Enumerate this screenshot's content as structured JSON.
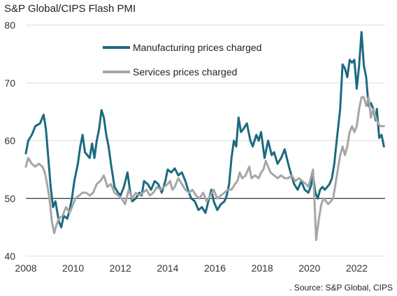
{
  "chart_data": {
    "type": "line",
    "title": "S&P Global/CIPS Flash PMI",
    "source": ". Source: S&P Global, CIPS",
    "xlim": [
      2008.0,
      2023.2
    ],
    "ylim": [
      40,
      80
    ],
    "x_ticks": [
      2008,
      2010,
      2012,
      2014,
      2016,
      2018,
      2020,
      2022
    ],
    "y_ticks": [
      40,
      50,
      60,
      70,
      80
    ],
    "reference_line": 50,
    "grid": "horizontal",
    "legend_position": "top-center",
    "series": [
      {
        "name": "Manufacturing prices charged",
        "color": "#1b6a80",
        "points": [
          [
            2008.0,
            57.8
          ],
          [
            2008.1,
            60.0
          ],
          [
            2008.25,
            61.0
          ],
          [
            2008.4,
            62.5
          ],
          [
            2008.6,
            63.0
          ],
          [
            2008.75,
            64.5
          ],
          [
            2008.85,
            62.0
          ],
          [
            2008.95,
            57.0
          ],
          [
            2009.05,
            52.0
          ],
          [
            2009.15,
            48.5
          ],
          [
            2009.25,
            49.5
          ],
          [
            2009.4,
            46.0
          ],
          [
            2009.5,
            45.0
          ],
          [
            2009.6,
            47.0
          ],
          [
            2009.75,
            46.5
          ],
          [
            2009.85,
            48.0
          ],
          [
            2009.95,
            50.0
          ],
          [
            2010.05,
            53.0
          ],
          [
            2010.2,
            56.0
          ],
          [
            2010.3,
            59.0
          ],
          [
            2010.4,
            61.0
          ],
          [
            2010.5,
            58.0
          ],
          [
            2010.6,
            57.5
          ],
          [
            2010.7,
            57.0
          ],
          [
            2010.8,
            59.5
          ],
          [
            2010.9,
            57.0
          ],
          [
            2011.0,
            60.0
          ],
          [
            2011.1,
            62.0
          ],
          [
            2011.2,
            65.3
          ],
          [
            2011.3,
            64.0
          ],
          [
            2011.4,
            61.0
          ],
          [
            2011.5,
            59.0
          ],
          [
            2011.6,
            56.0
          ],
          [
            2011.75,
            52.0
          ],
          [
            2011.9,
            51.0
          ],
          [
            2012.0,
            50.5
          ],
          [
            2012.15,
            52.0
          ],
          [
            2012.3,
            54.5
          ],
          [
            2012.4,
            51.5
          ],
          [
            2012.5,
            49.5
          ],
          [
            2012.65,
            50.0
          ],
          [
            2012.8,
            51.0
          ],
          [
            2012.9,
            50.5
          ],
          [
            2013.0,
            53.0
          ],
          [
            2013.15,
            52.5
          ],
          [
            2013.3,
            51.5
          ],
          [
            2013.45,
            53.0
          ],
          [
            2013.6,
            52.5
          ],
          [
            2013.75,
            51.0
          ],
          [
            2013.9,
            53.0
          ],
          [
            2014.0,
            55.0
          ],
          [
            2014.15,
            54.5
          ],
          [
            2014.3,
            55.2
          ],
          [
            2014.45,
            54.0
          ],
          [
            2014.6,
            54.5
          ],
          [
            2014.75,
            53.0
          ],
          [
            2014.9,
            51.0
          ],
          [
            2015.0,
            50.0
          ],
          [
            2015.15,
            49.5
          ],
          [
            2015.3,
            48.0
          ],
          [
            2015.45,
            48.5
          ],
          [
            2015.6,
            47.5
          ],
          [
            2015.75,
            50.0
          ],
          [
            2015.85,
            51.5
          ],
          [
            2015.95,
            49.5
          ],
          [
            2016.1,
            48.0
          ],
          [
            2016.25,
            49.0
          ],
          [
            2016.4,
            49.5
          ],
          [
            2016.5,
            50.5
          ],
          [
            2016.6,
            52.5
          ],
          [
            2016.7,
            57.0
          ],
          [
            2016.8,
            60.0
          ],
          [
            2016.9,
            59.0
          ],
          [
            2017.0,
            64.0
          ],
          [
            2017.1,
            61.5
          ],
          [
            2017.2,
            62.0
          ],
          [
            2017.35,
            63.0
          ],
          [
            2017.5,
            60.0
          ],
          [
            2017.6,
            59.0
          ],
          [
            2017.75,
            61.0
          ],
          [
            2017.85,
            60.0
          ],
          [
            2017.95,
            61.5
          ],
          [
            2018.1,
            57.0
          ],
          [
            2018.25,
            60.0
          ],
          [
            2018.4,
            57.5
          ],
          [
            2018.5,
            58.0
          ],
          [
            2018.65,
            56.0
          ],
          [
            2018.8,
            57.0
          ],
          [
            2018.95,
            58.5
          ],
          [
            2019.1,
            56.0
          ],
          [
            2019.2,
            54.5
          ],
          [
            2019.35,
            52.5
          ],
          [
            2019.5,
            51.5
          ],
          [
            2019.65,
            53.0
          ],
          [
            2019.8,
            51.5
          ],
          [
            2019.95,
            51.0
          ],
          [
            2020.05,
            52.0
          ],
          [
            2020.15,
            54.0
          ],
          [
            2020.25,
            51.0
          ],
          [
            2020.35,
            50.0
          ],
          [
            2020.45,
            51.5
          ],
          [
            2020.55,
            52.0
          ],
          [
            2020.65,
            51.5
          ],
          [
            2020.75,
            52.0
          ],
          [
            2020.85,
            52.5
          ],
          [
            2020.95,
            53.5
          ],
          [
            2021.05,
            56.0
          ],
          [
            2021.15,
            60.0
          ],
          [
            2021.3,
            65.5
          ],
          [
            2021.4,
            73.2
          ],
          [
            2021.5,
            72.5
          ],
          [
            2021.6,
            71.0
          ],
          [
            2021.7,
            74.0
          ],
          [
            2021.8,
            73.5
          ],
          [
            2021.9,
            74.0
          ],
          [
            2022.0,
            69.0
          ],
          [
            2022.1,
            73.0
          ],
          [
            2022.2,
            78.8
          ],
          [
            2022.3,
            73.0
          ],
          [
            2022.4,
            71.0
          ],
          [
            2022.5,
            66.0
          ],
          [
            2022.6,
            66.5
          ],
          [
            2022.7,
            65.5
          ],
          [
            2022.8,
            63.5
          ],
          [
            2022.85,
            65.5
          ],
          [
            2022.95,
            60.5
          ],
          [
            2023.05,
            61.0
          ],
          [
            2023.15,
            59.0
          ]
        ]
      },
      {
        "name": "Services prices charged",
        "color": "#a6a6a6",
        "points": [
          [
            2008.0,
            55.5
          ],
          [
            2008.1,
            57.0
          ],
          [
            2008.25,
            56.0
          ],
          [
            2008.4,
            55.5
          ],
          [
            2008.55,
            56.0
          ],
          [
            2008.7,
            55.5
          ],
          [
            2008.8,
            54.5
          ],
          [
            2008.9,
            52.5
          ],
          [
            2009.0,
            50.0
          ],
          [
            2009.1,
            46.0
          ],
          [
            2009.2,
            44.0
          ],
          [
            2009.3,
            45.5
          ],
          [
            2009.4,
            46.5
          ],
          [
            2009.55,
            47.0
          ],
          [
            2009.7,
            48.5
          ],
          [
            2009.85,
            47.5
          ],
          [
            2010.0,
            49.0
          ],
          [
            2010.1,
            50.0
          ],
          [
            2010.25,
            50.5
          ],
          [
            2010.4,
            51.0
          ],
          [
            2010.55,
            51.0
          ],
          [
            2010.7,
            50.5
          ],
          [
            2010.85,
            51.0
          ],
          [
            2011.0,
            52.5
          ],
          [
            2011.15,
            53.0
          ],
          [
            2011.3,
            54.0
          ],
          [
            2011.45,
            52.0
          ],
          [
            2011.6,
            52.5
          ],
          [
            2011.75,
            51.0
          ],
          [
            2011.9,
            50.5
          ],
          [
            2012.05,
            50.0
          ],
          [
            2012.2,
            49.0
          ],
          [
            2012.35,
            51.5
          ],
          [
            2012.5,
            50.0
          ],
          [
            2012.65,
            51.0
          ],
          [
            2012.8,
            50.5
          ],
          [
            2012.95,
            51.0
          ],
          [
            2013.1,
            51.5
          ],
          [
            2013.25,
            50.5
          ],
          [
            2013.4,
            51.0
          ],
          [
            2013.55,
            52.0
          ],
          [
            2013.7,
            51.5
          ],
          [
            2013.85,
            52.0
          ],
          [
            2014.0,
            52.5
          ],
          [
            2014.1,
            53.0
          ],
          [
            2014.2,
            51.5
          ],
          [
            2014.3,
            52.0
          ],
          [
            2014.45,
            53.5
          ],
          [
            2014.6,
            52.5
          ],
          [
            2014.75,
            51.5
          ],
          [
            2014.9,
            51.0
          ],
          [
            2015.05,
            51.5
          ],
          [
            2015.2,
            50.5
          ],
          [
            2015.35,
            50.0
          ],
          [
            2015.5,
            51.0
          ],
          [
            2015.65,
            49.5
          ],
          [
            2015.8,
            50.5
          ],
          [
            2015.95,
            51.5
          ],
          [
            2016.1,
            50.0
          ],
          [
            2016.25,
            50.5
          ],
          [
            2016.4,
            51.0
          ],
          [
            2016.55,
            51.5
          ],
          [
            2016.7,
            51.5
          ],
          [
            2016.85,
            52.5
          ],
          [
            2016.95,
            53.0
          ],
          [
            2017.05,
            54.5
          ],
          [
            2017.15,
            53.5
          ],
          [
            2017.3,
            54.0
          ],
          [
            2017.45,
            55.5
          ],
          [
            2017.55,
            53.5
          ],
          [
            2017.7,
            54.0
          ],
          [
            2017.85,
            53.5
          ],
          [
            2017.95,
            54.5
          ],
          [
            2018.05,
            55.0
          ],
          [
            2018.15,
            56.5
          ],
          [
            2018.25,
            55.5
          ],
          [
            2018.35,
            54.5
          ],
          [
            2018.5,
            54.0
          ],
          [
            2018.65,
            53.5
          ],
          [
            2018.8,
            54.0
          ],
          [
            2018.95,
            53.5
          ],
          [
            2019.1,
            53.5
          ],
          [
            2019.25,
            54.0
          ],
          [
            2019.4,
            53.0
          ],
          [
            2019.55,
            53.5
          ],
          [
            2019.7,
            53.0
          ],
          [
            2019.85,
            52.5
          ],
          [
            2019.95,
            52.0
          ],
          [
            2020.05,
            53.5
          ],
          [
            2020.15,
            55.0
          ],
          [
            2020.22,
            49.0
          ],
          [
            2020.28,
            42.8
          ],
          [
            2020.4,
            46.5
          ],
          [
            2020.5,
            49.0
          ],
          [
            2020.6,
            50.0
          ],
          [
            2020.7,
            49.5
          ],
          [
            2020.8,
            49.0
          ],
          [
            2020.9,
            49.5
          ],
          [
            2021.0,
            50.0
          ],
          [
            2021.1,
            52.5
          ],
          [
            2021.2,
            55.0
          ],
          [
            2021.3,
            57.5
          ],
          [
            2021.4,
            59.0
          ],
          [
            2021.5,
            57.5
          ],
          [
            2021.6,
            59.0
          ],
          [
            2021.7,
            61.5
          ],
          [
            2021.8,
            62.5
          ],
          [
            2021.9,
            61.5
          ],
          [
            2022.0,
            62.5
          ],
          [
            2022.1,
            65.5
          ],
          [
            2022.2,
            67.5
          ],
          [
            2022.3,
            67.5
          ],
          [
            2022.4,
            66.0
          ],
          [
            2022.5,
            67.5
          ],
          [
            2022.6,
            64.0
          ],
          [
            2022.7,
            65.5
          ],
          [
            2022.8,
            64.0
          ],
          [
            2022.9,
            63.0
          ],
          [
            2023.0,
            62.5
          ],
          [
            2023.1,
            62.5
          ],
          [
            2023.15,
            62.5
          ]
        ]
      }
    ]
  }
}
